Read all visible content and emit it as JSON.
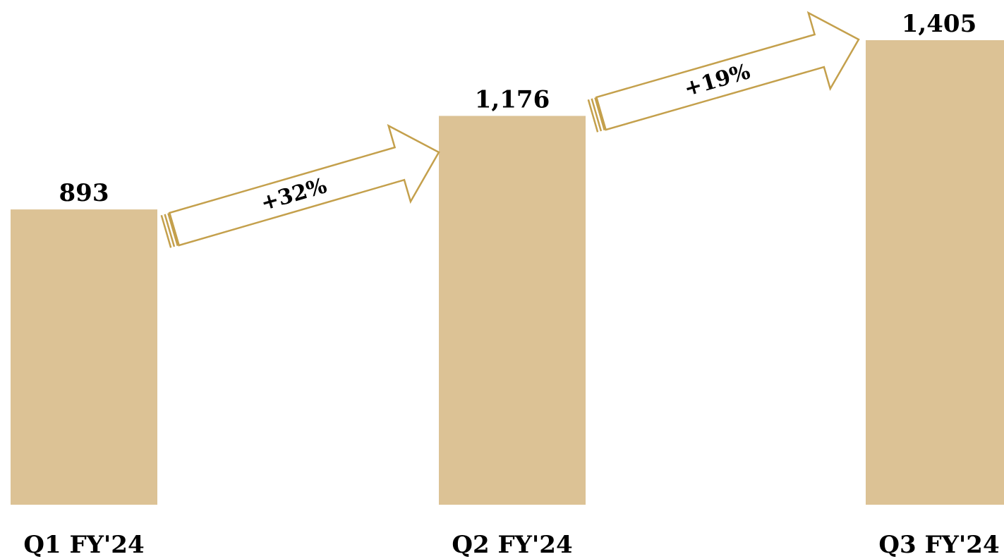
{
  "chart_data": {
    "type": "bar",
    "categories": [
      "Q1 FY'24",
      "Q2 FY'24",
      "Q3 FY'24"
    ],
    "values": [
      893,
      1176,
      1405
    ],
    "value_labels": [
      "893",
      "1,176",
      "1,405"
    ],
    "ylim": [
      0,
      1405
    ],
    "grid": false,
    "legend": "none",
    "annotations": [
      {
        "type": "growth-arrow",
        "from_index": 0,
        "to_index": 1,
        "label": "+32%"
      },
      {
        "type": "growth-arrow",
        "from_index": 1,
        "to_index": 2,
        "label": "+19%"
      }
    ]
  },
  "colors": {
    "bar": "#dcc295",
    "arrow_outline": "#c4a04c",
    "arrow_fill": "#ffffff",
    "text": "#000000"
  }
}
